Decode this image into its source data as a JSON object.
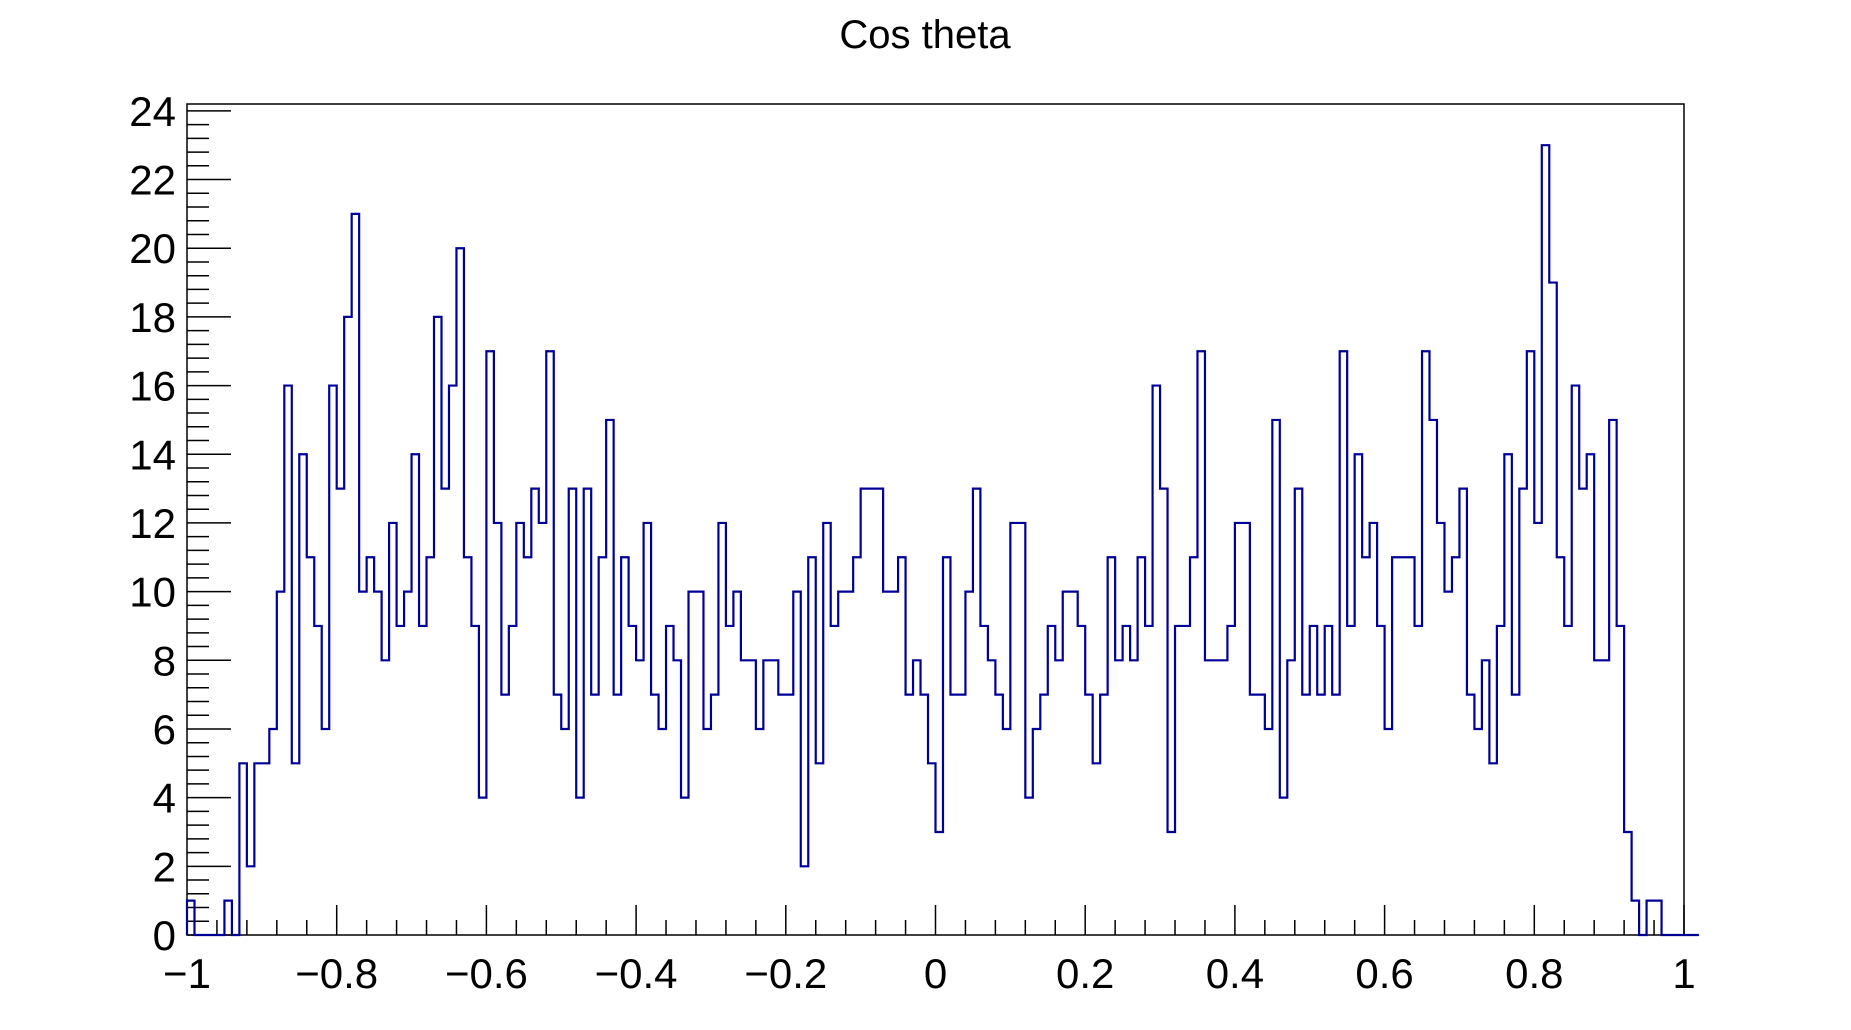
{
  "chart_data": {
    "type": "histogram",
    "title": "Cos theta",
    "xlabel": "",
    "ylabel": "",
    "xlim": [
      -1,
      1
    ],
    "ylim": [
      0,
      24.2
    ],
    "bin_edges_start": -1,
    "bin_width": 0.01,
    "values": [
      1,
      0,
      0,
      0,
      0,
      1,
      0,
      5,
      2,
      5,
      5,
      6,
      10,
      16,
      5,
      14,
      11,
      9,
      6,
      16,
      13,
      18,
      21,
      10,
      11,
      10,
      8,
      12,
      9,
      10,
      14,
      9,
      11,
      18,
      13,
      16,
      20,
      11,
      9,
      4,
      17,
      12,
      7,
      9,
      12,
      11,
      13,
      12,
      17,
      7,
      6,
      13,
      4,
      13,
      7,
      11,
      15,
      7,
      11,
      9,
      8,
      12,
      7,
      6,
      9,
      8,
      4,
      10,
      10,
      6,
      7,
      12,
      9,
      10,
      8,
      8,
      6,
      8,
      8,
      7,
      7,
      10,
      2,
      11,
      5,
      12,
      9,
      10,
      10,
      11,
      13,
      13,
      13,
      10,
      10,
      11,
      7,
      8,
      7,
      5,
      3,
      11,
      7,
      7,
      10,
      13,
      9,
      8,
      7,
      6,
      12,
      12,
      4,
      6,
      7,
      9,
      8,
      10,
      10,
      9,
      7,
      5,
      7,
      11,
      8,
      9,
      8,
      11,
      9,
      16,
      13,
      3,
      9,
      9,
      11,
      17,
      8,
      8,
      8,
      9,
      12,
      12,
      7,
      7,
      6,
      15,
      4,
      8,
      13,
      7,
      9,
      7,
      9,
      7,
      17,
      9,
      14,
      11,
      12,
      9,
      6,
      11,
      11,
      11,
      9,
      17,
      15,
      12,
      10,
      11,
      13,
      7,
      6,
      8,
      5,
      9,
      14,
      7,
      13,
      17,
      12,
      23,
      19,
      11,
      9,
      16,
      13,
      14,
      8,
      8,
      15,
      9,
      3,
      1,
      0,
      1,
      1,
      0,
      0,
      0,
      0,
      0
    ],
    "x_ticks": [
      -1,
      -0.8,
      -0.6,
      -0.4,
      -0.2,
      0,
      0.2,
      0.4,
      0.6,
      0.8,
      1
    ],
    "x_tick_labels": [
      "−1",
      "−0.8",
      "−0.6",
      "−0.4",
      "−0.2",
      "0",
      "0.2",
      "0.4",
      "0.6",
      "0.8",
      "1"
    ],
    "y_ticks": [
      0,
      2,
      4,
      6,
      8,
      10,
      12,
      14,
      16,
      18,
      20,
      22,
      24
    ],
    "y_tick_labels": [
      "0",
      "2",
      "4",
      "6",
      "8",
      "10",
      "12",
      "14",
      "16",
      "18",
      "20",
      "22",
      "24"
    ],
    "grid": false,
    "legend": "none",
    "colors": {
      "line": "#000099",
      "frame": "#000000",
      "background": "#ffffff"
    }
  }
}
